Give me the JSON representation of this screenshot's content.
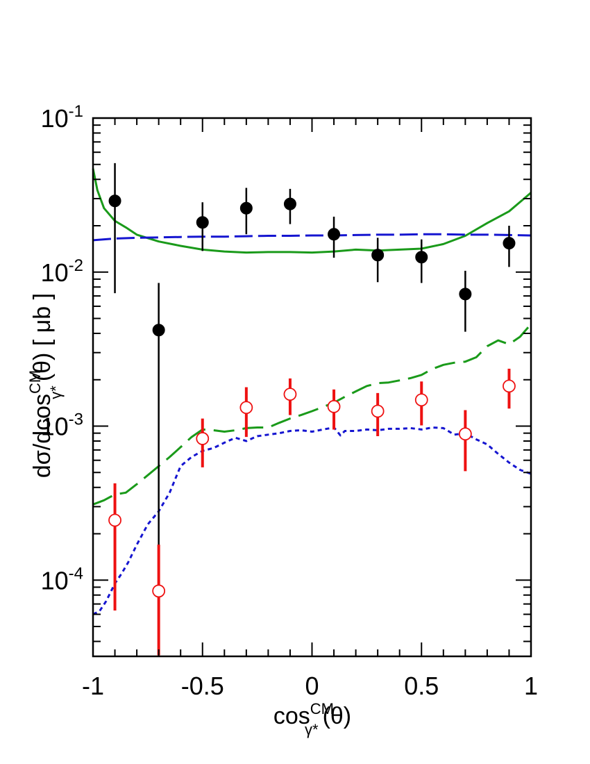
{
  "chart_data": {
    "type": "scatter",
    "title": "",
    "xlabel": {
      "base": "cos",
      "sup": "CM",
      "sub": "γ*",
      "tail": "(θ)"
    },
    "ylabel": {
      "base": "dσ/dcos",
      "sup": "CM",
      "sub": "γ*",
      "tail": "(θ) [ μb ]"
    },
    "xlim": [
      -1,
      1
    ],
    "ylim": [
      3.2e-05,
      0.1
    ],
    "yscale": "log",
    "grid": false,
    "legend": "none",
    "x_ticks": [
      {
        "value": -1,
        "label": "-1"
      },
      {
        "value": -0.5,
        "label": "-0.5"
      },
      {
        "value": 0,
        "label": "0"
      },
      {
        "value": 0.5,
        "label": "0.5"
      },
      {
        "value": 1,
        "label": "1"
      }
    ],
    "y_ticks": [
      {
        "value": 0.1,
        "base": "10",
        "exp": "-1"
      },
      {
        "value": 0.01,
        "base": "10",
        "exp": "-2"
      },
      {
        "value": 0.001,
        "base": "10",
        "exp": "-3"
      },
      {
        "value": 0.0001,
        "base": "10",
        "exp": "-4"
      }
    ],
    "series": [
      {
        "style": "markers",
        "marker": "filled-circle",
        "color": "#000000",
        "points": [
          {
            "x": -0.9,
            "y": 0.029,
            "lo": 0.0073,
            "hi": 0.051
          },
          {
            "x": -0.7,
            "y": 0.0042,
            "lo": 3.25e-05,
            "hi": 0.0085
          },
          {
            "x": -0.5,
            "y": 0.021,
            "lo": 0.0137,
            "hi": 0.0284
          },
          {
            "x": -0.3,
            "y": 0.026,
            "lo": 0.0176,
            "hi": 0.0352
          },
          {
            "x": -0.1,
            "y": 0.0277,
            "lo": 0.0205,
            "hi": 0.0347
          },
          {
            "x": 0.1,
            "y": 0.0176,
            "lo": 0.0124,
            "hi": 0.0229
          },
          {
            "x": 0.3,
            "y": 0.0129,
            "lo": 0.0086,
            "hi": 0.0167
          },
          {
            "x": 0.5,
            "y": 0.0125,
            "lo": 0.0085,
            "hi": 0.0163
          },
          {
            "x": 0.7,
            "y": 0.0072,
            "lo": 0.0041,
            "hi": 0.0102
          },
          {
            "x": 0.9,
            "y": 0.0154,
            "lo": 0.0108,
            "hi": 0.02
          }
        ]
      },
      {
        "style": "markers",
        "marker": "open-circle",
        "color": "#ee1111",
        "points": [
          {
            "x": -0.9,
            "y": 0.000245,
            "lo": 6.35e-05,
            "hi": 0.000425
          },
          {
            "x": -0.7,
            "y": 8.5e-05,
            "lo": 3.25e-05,
            "hi": 0.00017
          },
          {
            "x": -0.5,
            "y": 0.00083,
            "lo": 0.00054,
            "hi": 0.00112
          },
          {
            "x": -0.3,
            "y": 0.00132,
            "lo": 0.00085,
            "hi": 0.00179
          },
          {
            "x": -0.1,
            "y": 0.00161,
            "lo": 0.00118,
            "hi": 0.00204
          },
          {
            "x": 0.1,
            "y": 0.00134,
            "lo": 0.00095,
            "hi": 0.00173
          },
          {
            "x": 0.3,
            "y": 0.00125,
            "lo": 0.00086,
            "hi": 0.00164
          },
          {
            "x": 0.5,
            "y": 0.00148,
            "lo": 0.00101,
            "hi": 0.00195
          },
          {
            "x": 0.7,
            "y": 0.00089,
            "lo": 0.00051,
            "hi": 0.00127
          },
          {
            "x": 0.9,
            "y": 0.00182,
            "lo": 0.0013,
            "hi": 0.00236
          }
        ]
      },
      {
        "style": "line",
        "dash": "solid",
        "color": "#1a9a1a",
        "x": [
          -1.0,
          -0.98,
          -0.95,
          -0.9,
          -0.85,
          -0.8,
          -0.7,
          -0.6,
          -0.5,
          -0.4,
          -0.3,
          -0.2,
          -0.1,
          0.0,
          0.1,
          0.2,
          0.3,
          0.4,
          0.5,
          0.6,
          0.7,
          0.8,
          0.9,
          0.95,
          1.0
        ],
        "y": [
          0.047,
          0.034,
          0.026,
          0.0215,
          0.0195,
          0.0175,
          0.0158,
          0.0148,
          0.014,
          0.0136,
          0.0134,
          0.0135,
          0.0135,
          0.0134,
          0.0136,
          0.014,
          0.0138,
          0.014,
          0.0142,
          0.0152,
          0.0172,
          0.0208,
          0.0248,
          0.0285,
          0.0328
        ]
      },
      {
        "style": "line",
        "dash": "long-dash",
        "color": "#1515d0",
        "x": [
          -1.0,
          -0.9,
          -0.8,
          -0.7,
          -0.6,
          -0.5,
          -0.4,
          -0.3,
          -0.2,
          -0.1,
          0.0,
          0.1,
          0.2,
          0.3,
          0.4,
          0.5,
          0.6,
          0.7,
          0.8,
          0.9,
          1.0
        ],
        "y": [
          0.0161,
          0.0165,
          0.0167,
          0.0168,
          0.0169,
          0.017,
          0.017,
          0.0171,
          0.0172,
          0.0172,
          0.0173,
          0.0173,
          0.0174,
          0.0175,
          0.0175,
          0.0176,
          0.0176,
          0.0175,
          0.0175,
          0.0174,
          0.0173
        ]
      },
      {
        "style": "line",
        "dash": "dash",
        "color": "#1a9a1a",
        "x": [
          -1.0,
          -0.95,
          -0.9,
          -0.85,
          -0.8,
          -0.75,
          -0.7,
          -0.65,
          -0.6,
          -0.55,
          -0.5,
          -0.45,
          -0.4,
          -0.35,
          -0.3,
          -0.25,
          -0.2,
          -0.15,
          -0.1,
          -0.05,
          0.0,
          0.05,
          0.1,
          0.15,
          0.2,
          0.25,
          0.3,
          0.35,
          0.4,
          0.45,
          0.5,
          0.55,
          0.6,
          0.65,
          0.7,
          0.75,
          0.8,
          0.85,
          0.9,
          0.95,
          1.0
        ],
        "y": [
          0.00031,
          0.00033,
          0.00036,
          0.00037,
          0.00042,
          0.00048,
          0.00055,
          0.00063,
          0.00073,
          0.00085,
          0.00095,
          0.00094,
          0.00092,
          0.00094,
          0.00097,
          0.00098,
          0.00098,
          0.00105,
          0.00112,
          0.00118,
          0.00125,
          0.00133,
          0.00142,
          0.00155,
          0.00168,
          0.00182,
          0.0019,
          0.00192,
          0.00198,
          0.00205,
          0.00215,
          0.00235,
          0.0025,
          0.00258,
          0.00262,
          0.0028,
          0.0033,
          0.0036,
          0.0034,
          0.0038,
          0.0046
        ]
      },
      {
        "style": "line",
        "dash": "dot",
        "color": "#1515d0",
        "x": [
          -1.0,
          -0.97,
          -0.94,
          -0.9,
          -0.87,
          -0.84,
          -0.8,
          -0.75,
          -0.7,
          -0.65,
          -0.6,
          -0.55,
          -0.5,
          -0.45,
          -0.4,
          -0.35,
          -0.3,
          -0.25,
          -0.2,
          -0.15,
          -0.1,
          -0.05,
          0.0,
          0.05,
          0.1,
          0.13,
          0.15,
          0.2,
          0.25,
          0.3,
          0.35,
          0.4,
          0.45,
          0.5,
          0.55,
          0.6,
          0.65,
          0.7,
          0.75,
          0.8,
          0.85,
          0.9,
          0.95,
          1.0
        ],
        "y": [
          6e-05,
          6.3e-05,
          7.3e-05,
          9.5e-05,
          0.00011,
          0.00013,
          0.00017,
          0.00023,
          0.00028,
          0.00037,
          0.00055,
          0.00063,
          0.00069,
          0.00072,
          0.00078,
          0.00084,
          0.0008,
          0.00086,
          0.00088,
          0.0009,
          0.00093,
          0.00094,
          0.00092,
          0.00095,
          0.00098,
          0.00087,
          0.00093,
          0.00093,
          0.00095,
          0.00094,
          0.00096,
          0.00096,
          0.00097,
          0.00095,
          0.00098,
          0.00097,
          0.00088,
          0.0009,
          0.00082,
          0.00076,
          0.00066,
          0.00058,
          0.00052,
          0.00049
        ]
      }
    ]
  }
}
